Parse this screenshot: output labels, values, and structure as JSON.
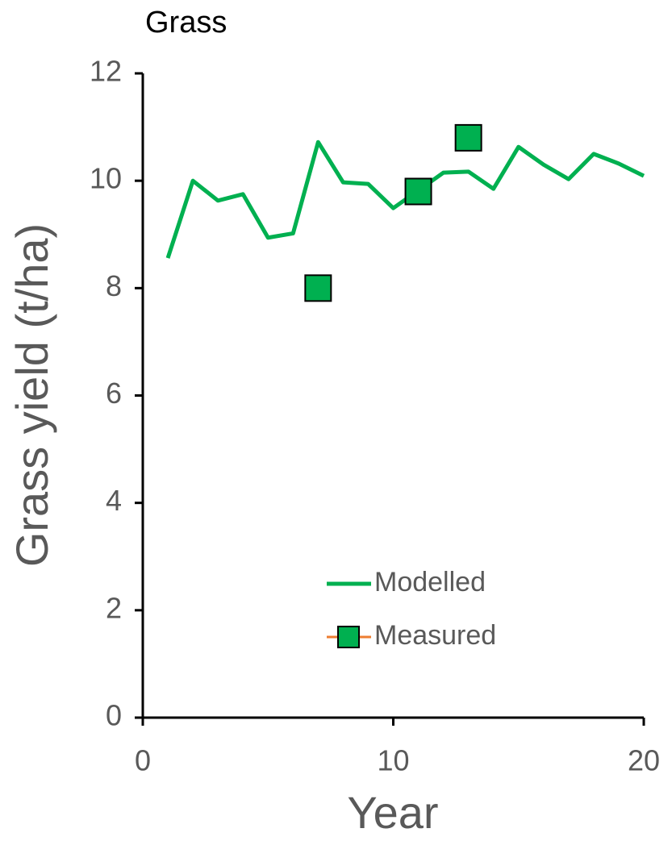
{
  "chart_data": {
    "type": "line",
    "title": "Grass",
    "x_label": "Year",
    "y_label": "Grass yield (t/ha)",
    "xlim": [
      0,
      20
    ],
    "xticks": [
      0,
      10,
      20
    ],
    "ylim": [
      0,
      12
    ],
    "yticks": [
      0,
      2,
      4,
      6,
      8,
      10,
      12
    ],
    "grid": false,
    "legend_position": "lower-right",
    "series": [
      {
        "name": "Modelled",
        "color": "#00b050",
        "mode": "lines",
        "x": [
          1,
          2,
          3,
          4,
          5,
          6,
          7,
          8,
          9,
          10,
          11,
          12,
          13,
          14,
          15,
          16,
          17,
          18,
          19,
          20
        ],
        "values": [
          8.56,
          10.0,
          9.63,
          9.75,
          8.94,
          9.02,
          10.72,
          9.97,
          9.94,
          9.49,
          9.82,
          10.15,
          10.17,
          9.85,
          10.63,
          10.3,
          10.03,
          10.5,
          10.32,
          10.09
        ]
      },
      {
        "name": "Measured",
        "color": "#00b050",
        "line_color": "#ed7d31",
        "mode": "markers",
        "x": [
          7,
          11,
          13
        ],
        "values": [
          8.0,
          9.8,
          10.8
        ]
      }
    ]
  }
}
